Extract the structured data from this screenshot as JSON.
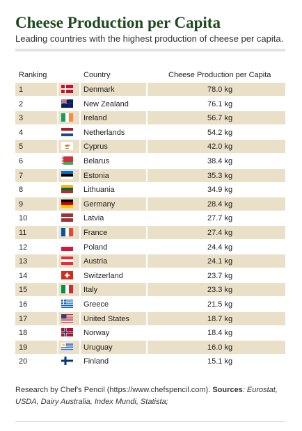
{
  "chart_data": {
    "type": "table",
    "title": "Cheese Production per Capita",
    "subtitle": "Leading countries with the highest production of cheese per capita.",
    "columns": [
      "Ranking",
      "",
      "Country",
      "Cheese Production per Capita"
    ],
    "rows": [
      {
        "rank": "1",
        "country": "Denmark",
        "value": "78.0 kg",
        "flag": "flag-denmark-icon"
      },
      {
        "rank": "2",
        "country": "New Zealand",
        "value": "76.1 kg",
        "flag": "flag-new-zealand-icon"
      },
      {
        "rank": "3",
        "country": "Ireland",
        "value": "56.7 kg",
        "flag": "flag-ireland-icon"
      },
      {
        "rank": "4",
        "country": "Netherlands",
        "value": "54.2 kg",
        "flag": "flag-netherlands-icon"
      },
      {
        "rank": "5",
        "country": "Cyprus",
        "value": "42.0 kg",
        "flag": "flag-cyprus-icon"
      },
      {
        "rank": "6",
        "country": "Belarus",
        "value": "38.4 kg",
        "flag": "flag-belarus-icon"
      },
      {
        "rank": "7",
        "country": "Estonia",
        "value": "35.3 kg",
        "flag": "flag-estonia-icon"
      },
      {
        "rank": "8",
        "country": "Lithuania",
        "value": "34.9 kg",
        "flag": "flag-lithuania-icon"
      },
      {
        "rank": "9",
        "country": "Germany",
        "value": "28.4 kg",
        "flag": "flag-germany-icon"
      },
      {
        "rank": "10",
        "country": "Latvia",
        "value": "27.7 kg",
        "flag": "flag-latvia-icon"
      },
      {
        "rank": "11",
        "country": "France",
        "value": "27.4 kg",
        "flag": "flag-france-icon"
      },
      {
        "rank": "12",
        "country": "Poland",
        "value": "24.4 kg",
        "flag": "flag-poland-icon"
      },
      {
        "rank": "13",
        "country": "Austria",
        "value": "24.1 kg",
        "flag": "flag-austria-icon"
      },
      {
        "rank": "14",
        "country": "Switzerland",
        "value": "23.7 kg",
        "flag": "flag-switzerland-icon"
      },
      {
        "rank": "15",
        "country": "Italy",
        "value": "23.3 kg",
        "flag": "flag-italy-icon"
      },
      {
        "rank": "16",
        "country": "Greece",
        "value": "21.5 kg",
        "flag": "flag-greece-icon"
      },
      {
        "rank": "17",
        "country": "United States",
        "value": "18.7 kg",
        "flag": "flag-united-states-icon"
      },
      {
        "rank": "18",
        "country": "Norway",
        "value": "18.4 kg",
        "flag": "flag-norway-icon"
      },
      {
        "rank": "19",
        "country": "Uruguay",
        "value": "16.0 kg",
        "flag": "flag-uruguay-icon"
      },
      {
        "rank": "20",
        "country": "Finland",
        "value": "15.1 kg",
        "flag": "flag-finland-icon"
      }
    ]
  },
  "footer": {
    "text": "Research by Chef's Pencil (https://www.chefspencil.com). ",
    "sources_label": "Sources",
    "sources_text": ": Eurostat, USDA, Dairy Australia, Index Mundi, Statista;"
  },
  "colors": {
    "title": "#1f4a1f",
    "row_shade": "#eadfc7",
    "rule": "#e3e3e3"
  }
}
